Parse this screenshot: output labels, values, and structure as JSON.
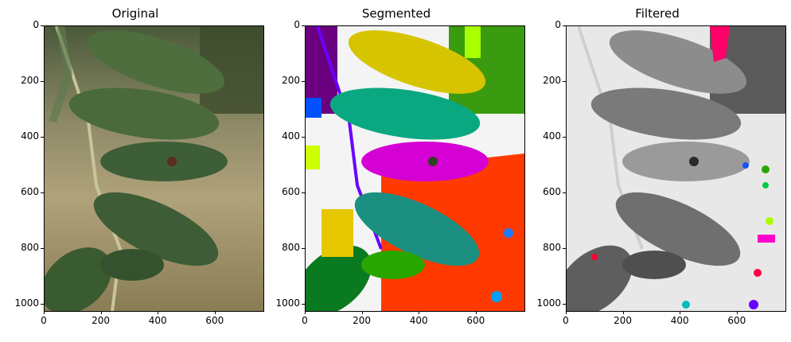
{
  "panels": [
    {
      "title": "Original"
    },
    {
      "title": "Segmented"
    },
    {
      "title": "Filtered"
    }
  ],
  "axes": {
    "y_ticks": [
      "0",
      "200",
      "400",
      "600",
      "800",
      "1000"
    ],
    "x_ticks": [
      "0",
      "200",
      "400",
      "600"
    ]
  },
  "colors": {
    "leaf_dark": "#3f5e34",
    "leaf_light": "#6f8a5a",
    "background_orig": "#a9a27a",
    "seg_yellow": "#d6c800",
    "seg_teal": "#0aa88a",
    "seg_magenta": "#d400d4",
    "seg_red": "#ff3300",
    "seg_green": "#2aa600",
    "seg_cyan": "#1b9e8f",
    "filtered_grey": "#8a8a8a",
    "pink": "#ff0066"
  }
}
